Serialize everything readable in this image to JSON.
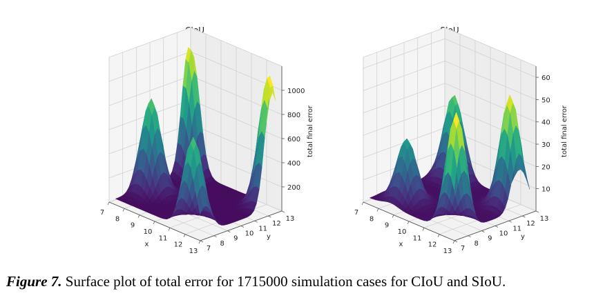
{
  "chart_data": [
    {
      "type": "surface",
      "title": "CIoU",
      "xlabel": "x",
      "ylabel": "y",
      "zlabel": "total final error",
      "xlim": [
        7,
        13
      ],
      "ylim": [
        7,
        13
      ],
      "zlim": [
        0,
        1200
      ],
      "x_ticks": [
        "7",
        "8",
        "9",
        "10",
        "11",
        "12",
        "13"
      ],
      "y_ticks": [
        "7",
        "8",
        "9",
        "10",
        "11",
        "12",
        "13"
      ],
      "z_ticks": [
        "200",
        "400",
        "600",
        "800",
        "1000"
      ],
      "peaks": [
        {
          "x": 7.3,
          "y": 12.6,
          "z": 1050
        },
        {
          "x": 12.6,
          "y": 12.5,
          "z": 1100
        },
        {
          "x": 7.8,
          "y": 9.2,
          "z": 780
        },
        {
          "x": 12.0,
          "y": 7.6,
          "z": 750
        }
      ],
      "base_z": 30,
      "colorscale": "viridis",
      "grid": true
    },
    {
      "type": "surface",
      "title": "SIoU",
      "xlabel": "x",
      "ylabel": "y",
      "zlabel": "total final error",
      "xlim": [
        7,
        13
      ],
      "ylim": [
        7,
        13
      ],
      "zlim": [
        0,
        65
      ],
      "x_ticks": [
        "7",
        "8",
        "9",
        "10",
        "11",
        "12",
        "13"
      ],
      "y_ticks": [
        "7",
        "8",
        "9",
        "10",
        "11",
        "12",
        "13"
      ],
      "z_ticks": [
        "10",
        "20",
        "30",
        "40",
        "50",
        "60"
      ],
      "peaks": [
        {
          "x": 12.2,
          "y": 12.0,
          "z": 50
        },
        {
          "x": 8.2,
          "y": 12.3,
          "z": 38
        },
        {
          "x": 12.4,
          "y": 7.8,
          "z": 52
        },
        {
          "x": 8.6,
          "y": 8.4,
          "z": 28
        }
      ],
      "base_z": 2,
      "colorscale": "viridis",
      "grid": true
    }
  ],
  "caption": {
    "label": "Figure 7.",
    "text": " Surface plot of total error for 1715000 simulation cases for CIoU and SIoU."
  }
}
